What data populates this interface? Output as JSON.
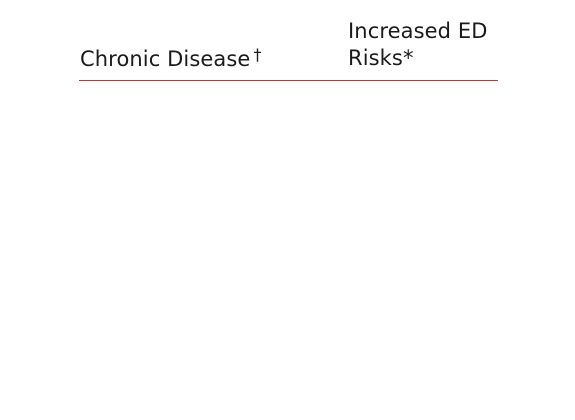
{
  "table": {
    "columns": [
      {
        "label": "Chronic Disease",
        "marker": "†"
      },
      {
        "label": "Increased ED Risks*",
        "marker": ""
      }
    ],
    "rows": []
  },
  "colors": {
    "rule": "#c0392b",
    "text": "#1a1a1a",
    "background": "#ffffff"
  }
}
